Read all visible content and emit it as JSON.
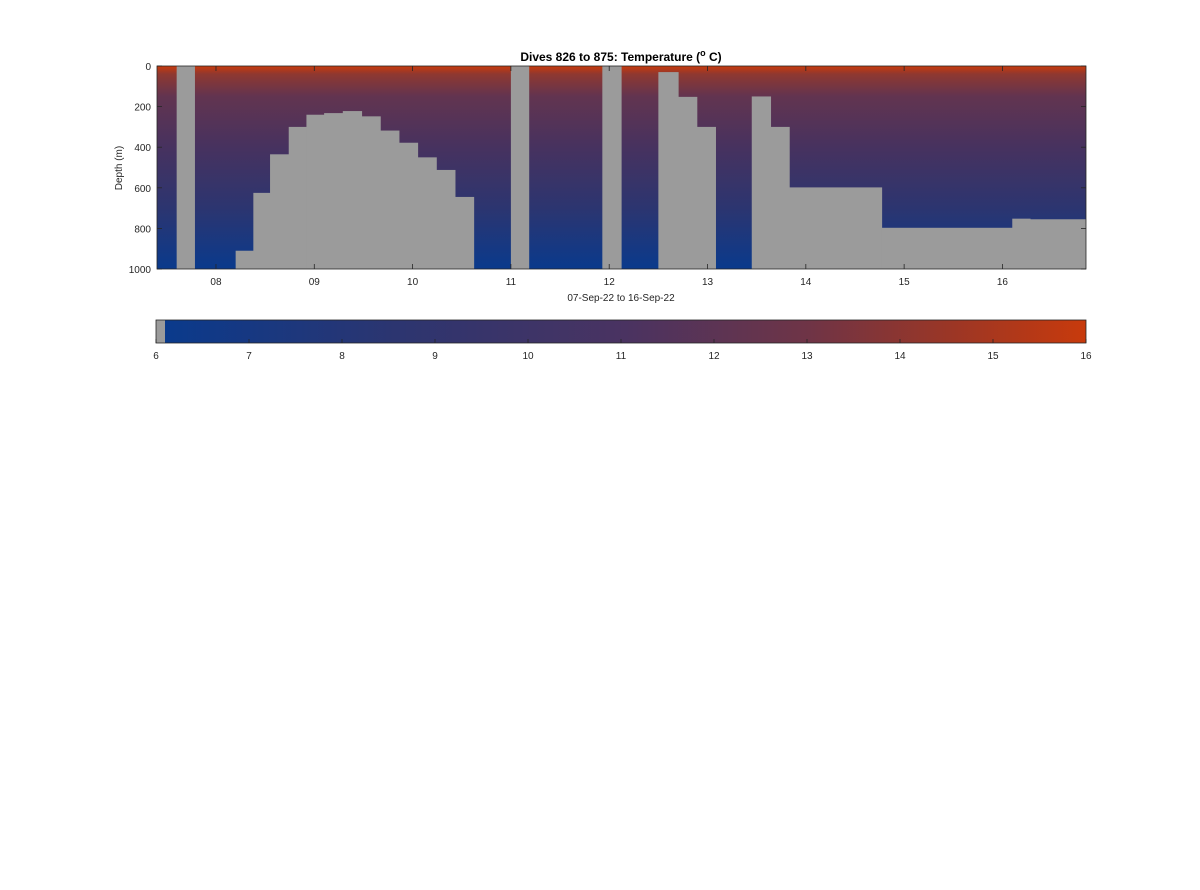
{
  "chart_data": {
    "type": "heatmap",
    "title": "Dives 826 to 875: Temperature (",
    "title_superscript": "o",
    "title_suffix": " C)",
    "ylabel": "Depth (m)",
    "xlabel": "07-Sep-22 to 16-Sep-22",
    "x_ticks": [
      "08",
      "09",
      "10",
      "11",
      "12",
      "13",
      "14",
      "15",
      "16"
    ],
    "y_ticks": [
      "0",
      "200",
      "400",
      "600",
      "800",
      "1000"
    ],
    "xlim": [
      7.4,
      16.85
    ],
    "ylim": [
      0,
      1000
    ],
    "y_reversed": true,
    "colors": {
      "cold": "#0a3a8c",
      "mid": "#4a3361",
      "warm": "#c83a0c",
      "no_data": "#9b9b9b"
    },
    "colorbar": {
      "ticks": [
        "6",
        "7",
        "8",
        "9",
        "10",
        "11",
        "12",
        "13",
        "14",
        "15",
        "16"
      ],
      "range": [
        6,
        16
      ]
    },
    "no_data_regions": [
      {
        "x0": 7.6,
        "x1": 7.78,
        "top": 0,
        "bottom": 1000
      },
      {
        "x0": 8.2,
        "x1": 8.38,
        "top": 910,
        "bottom": 1000
      },
      {
        "x0": 8.38,
        "x1": 8.55,
        "top": 625,
        "bottom": 1000
      },
      {
        "x0": 8.55,
        "x1": 8.74,
        "top": 435,
        "bottom": 1000
      },
      {
        "x0": 8.74,
        "x1": 8.92,
        "top": 300,
        "bottom": 1000
      },
      {
        "x0": 8.92,
        "x1": 9.1,
        "top": 240,
        "bottom": 1000
      },
      {
        "x0": 9.1,
        "x1": 9.29,
        "top": 232,
        "bottom": 1000
      },
      {
        "x0": 9.29,
        "x1": 9.48,
        "top": 222,
        "bottom": 1000
      },
      {
        "x0": 9.48,
        "x1": 9.67,
        "top": 248,
        "bottom": 1000
      },
      {
        "x0": 9.67,
        "x1": 9.86,
        "top": 318,
        "bottom": 1000
      },
      {
        "x0": 9.86,
        "x1": 10.05,
        "top": 378,
        "bottom": 1000
      },
      {
        "x0": 10.05,
        "x1": 10.24,
        "top": 450,
        "bottom": 1000
      },
      {
        "x0": 10.24,
        "x1": 10.43,
        "top": 512,
        "bottom": 1000
      },
      {
        "x0": 10.43,
        "x1": 10.62,
        "top": 645,
        "bottom": 1000
      },
      {
        "x0": 11.0,
        "x1": 11.18,
        "top": 0,
        "bottom": 1000
      },
      {
        "x0": 11.93,
        "x1": 12.12,
        "top": 0,
        "bottom": 1000
      },
      {
        "x0": 12.5,
        "x1": 12.7,
        "top": 30,
        "bottom": 1000
      },
      {
        "x0": 12.7,
        "x1": 12.89,
        "top": 152,
        "bottom": 1000
      },
      {
        "x0": 12.89,
        "x1": 13.08,
        "top": 300,
        "bottom": 1000
      },
      {
        "x0": 13.45,
        "x1": 13.64,
        "top": 150,
        "bottom": 1000
      },
      {
        "x0": 13.64,
        "x1": 13.83,
        "top": 300,
        "bottom": 1000
      },
      {
        "x0": 13.83,
        "x1": 14.77,
        "top": 598,
        "bottom": 1000
      },
      {
        "x0": 14.77,
        "x1": 16.1,
        "top": 797,
        "bottom": 1000
      },
      {
        "x0": 16.1,
        "x1": 16.28,
        "top": 752,
        "bottom": 1000
      },
      {
        "x0": 16.28,
        "x1": 16.85,
        "top": 755,
        "bottom": 1000
      }
    ]
  }
}
